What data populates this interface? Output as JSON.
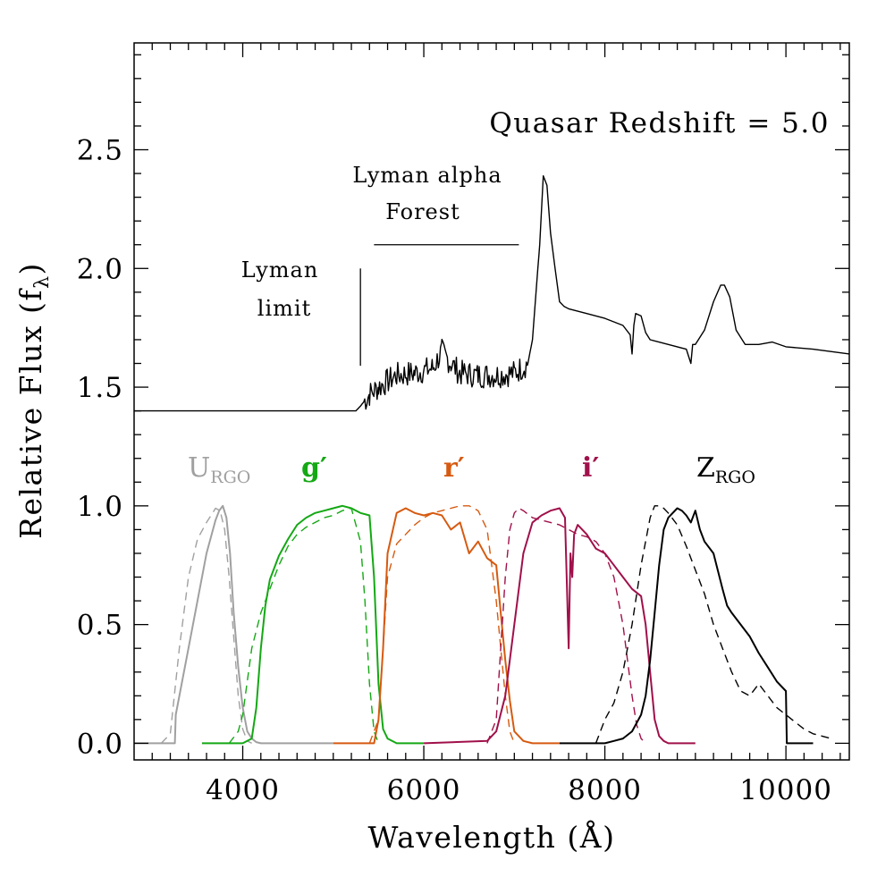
{
  "chart_data": {
    "type": "line",
    "xlabel": "Wavelength (Å)",
    "ylabel": "Relative Flux (f",
    "ylabel_sub": "λ",
    "ylabel_close": ")",
    "xlim": [
      2800,
      10700
    ],
    "ylim": [
      -0.07,
      2.95
    ],
    "x_ticks": [
      4000,
      6000,
      8000,
      10000
    ],
    "x_tick_labels": [
      "4000",
      "6000",
      "8000",
      "10000"
    ],
    "x_minor_step": 200,
    "y_ticks": [
      0.0,
      0.5,
      1.0,
      1.5,
      2.0,
      2.5
    ],
    "y_tick_labels": [
      "0.0",
      "0.5",
      "1.0",
      "1.5",
      "2.0",
      "2.5"
    ],
    "y_minor_step": 0.1,
    "grid": false,
    "annotations": {
      "redshift": "Quasar Redshift = 5.0",
      "lya_forest_line1": "Lyman alpha",
      "lya_forest_line2": "Forest",
      "lyman_limit_line1": "Lyman",
      "lyman_limit_line2": "limit"
    },
    "markers": {
      "lyman_limit_x": 5300,
      "lyman_limit_y": [
        1.59,
        2.0
      ],
      "lya_forest_x": [
        5450,
        7050
      ],
      "lya_forest_y": 2.1
    },
    "filter_labels": [
      {
        "name": "U",
        "sub": "RGO",
        "color": "#a0a0a0"
      },
      {
        "name": "g′",
        "sub": "",
        "color": "#14a814"
      },
      {
        "name": "r′",
        "sub": "",
        "color": "#d65a10"
      },
      {
        "name": "i′",
        "sub": "",
        "color": "#a0104a"
      },
      {
        "name": "Z",
        "sub": "RGO",
        "color": "#000000"
      }
    ],
    "series": [
      {
        "color": "#000000",
        "style": "solid",
        "noise": true,
        "x": [
          2800,
          5250,
          5300,
          5400,
          5500,
          5700,
          5900,
          6100,
          6200,
          6300,
          6400,
          6600,
          6800,
          7000,
          7150,
          7200,
          7280,
          7320,
          7360,
          7400,
          7450,
          7500,
          7550,
          7600,
          7800,
          8000,
          8200,
          8280,
          8300,
          8320,
          8340,
          8400,
          8450,
          8500,
          8700,
          8900,
          8950,
          8970,
          9000,
          9100,
          9200,
          9280,
          9320,
          9380,
          9450,
          9550,
          9700,
          9850,
          10000,
          10300,
          10700
        ],
        "y": [
          1.4,
          1.4,
          1.42,
          1.47,
          1.5,
          1.55,
          1.56,
          1.58,
          1.65,
          1.6,
          1.56,
          1.55,
          1.55,
          1.56,
          1.6,
          1.7,
          2.1,
          2.39,
          2.35,
          2.15,
          2.0,
          1.86,
          1.84,
          1.83,
          1.81,
          1.79,
          1.76,
          1.72,
          1.64,
          1.76,
          1.81,
          1.8,
          1.73,
          1.7,
          1.68,
          1.66,
          1.6,
          1.68,
          1.68,
          1.74,
          1.86,
          1.93,
          1.93,
          1.88,
          1.74,
          1.68,
          1.68,
          1.69,
          1.67,
          1.66,
          1.64
        ]
      },
      {
        "color": "#a0a0a0",
        "style": "solid",
        "noise": false,
        "x": [
          2800,
          3250,
          3260,
          3400,
          3500,
          3600,
          3700,
          3740,
          3780,
          3820,
          3860,
          3900,
          3950,
          4000,
          4050,
          4100,
          4150,
          4200,
          4400,
          5000
        ],
        "y": [
          0,
          0,
          0.12,
          0.4,
          0.6,
          0.8,
          0.94,
          0.98,
          1.0,
          0.95,
          0.8,
          0.55,
          0.32,
          0.15,
          0.05,
          0.02,
          0.005,
          0,
          0,
          0
        ]
      },
      {
        "color": "#a0a0a0",
        "style": "dashed",
        "noise": false,
        "x": [
          3100,
          3200,
          3300,
          3400,
          3500,
          3600,
          3650,
          3700,
          3750,
          3800,
          3850,
          3900,
          3950,
          4000,
          4050,
          4100
        ],
        "y": [
          0,
          0.04,
          0.4,
          0.7,
          0.86,
          0.93,
          0.96,
          0.99,
          0.98,
          0.9,
          0.7,
          0.45,
          0.2,
          0.06,
          0.01,
          0
        ]
      },
      {
        "color": "#14a814",
        "style": "solid",
        "noise": false,
        "x": [
          3550,
          4000,
          4100,
          4150,
          4200,
          4250,
          4300,
          4400,
          4500,
          4600,
          4700,
          4800,
          4900,
          5000,
          5100,
          5200,
          5300,
          5400,
          5450,
          5500,
          5550,
          5600,
          5650,
          5700,
          6000
        ],
        "y": [
          0,
          0,
          0.02,
          0.15,
          0.4,
          0.58,
          0.69,
          0.79,
          0.86,
          0.92,
          0.95,
          0.97,
          0.98,
          0.99,
          1.0,
          0.99,
          0.97,
          0.96,
          0.7,
          0.25,
          0.06,
          0.02,
          0.01,
          0,
          0
        ]
      },
      {
        "color": "#14a814",
        "style": "dashed",
        "noise": false,
        "x": [
          3850,
          3950,
          4000,
          4100,
          4200,
          4300,
          4400,
          4500,
          4600,
          4700,
          4800,
          4900,
          5000,
          5100,
          5200,
          5300,
          5350,
          5400,
          5450,
          5500
        ],
        "y": [
          0,
          0.05,
          0.12,
          0.4,
          0.55,
          0.65,
          0.75,
          0.83,
          0.88,
          0.91,
          0.93,
          0.95,
          0.96,
          0.98,
          0.99,
          0.85,
          0.6,
          0.25,
          0.05,
          0
        ]
      },
      {
        "color": "#d65a10",
        "style": "solid",
        "noise": false,
        "x": [
          5000,
          5450,
          5500,
          5550,
          5600,
          5700,
          5800,
          5900,
          6000,
          6100,
          6200,
          6300,
          6400,
          6500,
          6600,
          6700,
          6800,
          6850,
          6900,
          6950,
          7000,
          7100,
          7200,
          7500
        ],
        "y": [
          0,
          0,
          0.1,
          0.4,
          0.8,
          0.97,
          0.99,
          0.97,
          0.96,
          0.97,
          0.96,
          0.9,
          0.93,
          0.8,
          0.85,
          0.78,
          0.75,
          0.55,
          0.35,
          0.18,
          0.05,
          0.01,
          0,
          0
        ]
      },
      {
        "color": "#d65a10",
        "style": "dashed",
        "noise": false,
        "x": [
          5400,
          5500,
          5550,
          5600,
          5700,
          5800,
          5900,
          6000,
          6100,
          6200,
          6300,
          6400,
          6500,
          6600,
          6700,
          6800,
          6900,
          6950,
          7000
        ],
        "y": [
          0,
          0.1,
          0.4,
          0.7,
          0.84,
          0.88,
          0.92,
          0.95,
          0.97,
          0.98,
          0.99,
          1.0,
          1.0,
          0.98,
          0.9,
          0.6,
          0.2,
          0.05,
          0
        ]
      },
      {
        "color": "#a0104a",
        "style": "solid",
        "noise": false,
        "x": [
          6000,
          6700,
          6800,
          6900,
          7000,
          7100,
          7200,
          7300,
          7400,
          7500,
          7560,
          7600,
          7620,
          7640,
          7660,
          7700,
          7800,
          7900,
          8000,
          8100,
          8200,
          8300,
          8400,
          8450,
          8500,
          8550,
          8600,
          8650,
          8700,
          9000
        ],
        "y": [
          0,
          0.01,
          0.05,
          0.2,
          0.5,
          0.8,
          0.93,
          0.96,
          0.98,
          0.99,
          0.95,
          0.4,
          0.8,
          0.7,
          0.88,
          0.92,
          0.88,
          0.82,
          0.8,
          0.75,
          0.7,
          0.65,
          0.62,
          0.5,
          0.3,
          0.1,
          0.03,
          0.01,
          0,
          0
        ]
      },
      {
        "color": "#a0104a",
        "style": "dashed",
        "noise": false,
        "x": [
          6700,
          6800,
          6850,
          6900,
          6950,
          7000,
          7050,
          7100,
          7200,
          7300,
          7400,
          7500,
          7600,
          7700,
          7800,
          7900,
          8000,
          8100,
          8200,
          8300,
          8350,
          8400,
          8450
        ],
        "y": [
          0,
          0.1,
          0.4,
          0.7,
          0.9,
          0.97,
          0.99,
          0.98,
          0.95,
          0.94,
          0.93,
          0.92,
          0.9,
          0.88,
          0.87,
          0.85,
          0.8,
          0.7,
          0.5,
          0.2,
          0.08,
          0.02,
          0
        ]
      },
      {
        "color": "#000000",
        "style": "solid",
        "noise": false,
        "x": [
          7500,
          8000,
          8100,
          8200,
          8300,
          8400,
          8450,
          8500,
          8550,
          8600,
          8650,
          8700,
          8750,
          8800,
          8850,
          8900,
          8950,
          9000,
          9050,
          9100,
          9200,
          9300,
          9350,
          9400,
          9500,
          9600,
          9700,
          9800,
          9900,
          10000,
          10010,
          10300
        ],
        "y": [
          0,
          0,
          0.01,
          0.02,
          0.05,
          0.12,
          0.2,
          0.35,
          0.55,
          0.75,
          0.9,
          0.95,
          0.97,
          0.99,
          0.98,
          0.96,
          0.93,
          0.98,
          0.9,
          0.85,
          0.8,
          0.65,
          0.58,
          0.55,
          0.5,
          0.45,
          0.38,
          0.32,
          0.26,
          0.22,
          0,
          0
        ]
      },
      {
        "color": "#000000",
        "style": "dashed",
        "noise": false,
        "x": [
          7900,
          8000,
          8100,
          8200,
          8300,
          8400,
          8500,
          8550,
          8600,
          8650,
          8700,
          8800,
          8900,
          9000,
          9100,
          9200,
          9300,
          9400,
          9500,
          9600,
          9700,
          9800,
          9900,
          10000,
          10100,
          10200,
          10300,
          10400,
          10500
        ],
        "y": [
          0,
          0.1,
          0.17,
          0.3,
          0.5,
          0.75,
          0.95,
          1.0,
          1.0,
          0.99,
          0.97,
          0.92,
          0.83,
          0.73,
          0.63,
          0.5,
          0.4,
          0.3,
          0.22,
          0.2,
          0.25,
          0.2,
          0.15,
          0.12,
          0.09,
          0.06,
          0.04,
          0.03,
          0.02
        ]
      }
    ]
  }
}
